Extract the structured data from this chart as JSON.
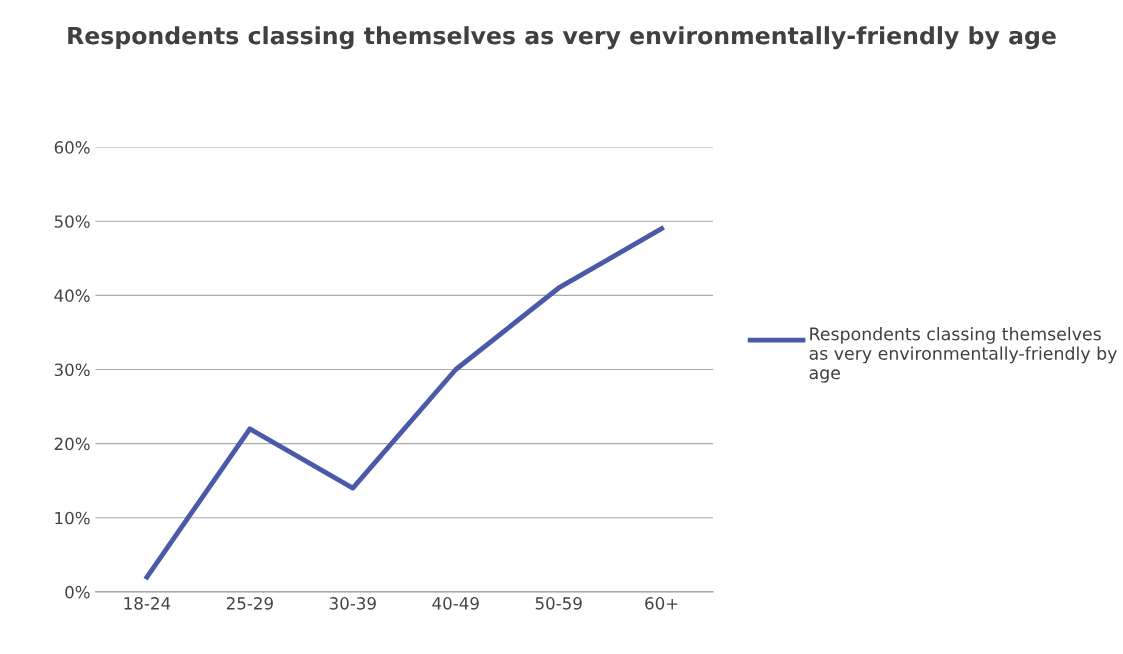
{
  "chart_data": {
    "type": "line",
    "title": "Respondents classing themselves as very environmentally-friendly by age",
    "categories": [
      "18-24",
      "25-29",
      "30-39",
      "40-49",
      "50-59",
      "60+"
    ],
    "series": [
      {
        "name": "Respondents classing themselves as very environmentally-friendly by age",
        "color": "#4a5aa8",
        "values": [
          2,
          22,
          14,
          30,
          41,
          49
        ]
      }
    ],
    "ylim": [
      0,
      60
    ],
    "yticks": [
      {
        "value": 0,
        "label": "0%"
      },
      {
        "value": 10,
        "label": "10%"
      },
      {
        "value": 20,
        "label": "20%"
      },
      {
        "value": 30,
        "label": "30%"
      },
      {
        "value": 40,
        "label": "40%"
      },
      {
        "value": 50,
        "label": "50%"
      },
      {
        "value": 60,
        "label": "60%"
      }
    ],
    "grid": "y",
    "legend": "right",
    "marker": "none",
    "line_style": "solid"
  }
}
